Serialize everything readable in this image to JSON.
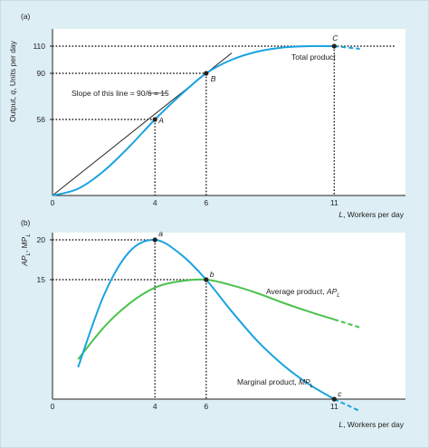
{
  "chart_data": [
    {
      "type": "line",
      "panel_label": "(a)",
      "xlabel_italic": "L",
      "xlabel_text": ", Workers per day",
      "ylabel_text": "Output, ",
      "ylabel_italic": "q",
      "ylabel_rest": ", Units per day",
      "x_ticks": [
        "0",
        "4",
        "6",
        "11"
      ],
      "y_ticks": [
        "56",
        "90",
        "110"
      ],
      "xlim": [
        0,
        13
      ],
      "ylim": [
        0,
        115
      ],
      "series": [
        {
          "name": "Total product",
          "color": "#1aa3e0",
          "x": [
            0,
            1,
            2,
            3,
            4,
            5,
            6,
            7,
            8,
            9,
            10,
            11,
            12
          ],
          "y": [
            0,
            5,
            18,
            36,
            56,
            74,
            90,
            100,
            106,
            109,
            110,
            110,
            108
          ]
        }
      ],
      "tangent_line": {
        "label": "Slope of this line = 90/6 = 15",
        "x": [
          0,
          7
        ],
        "y": [
          0,
          105
        ]
      },
      "points": [
        {
          "name": "A",
          "x": 4,
          "y": 56
        },
        {
          "name": "B",
          "x": 6,
          "y": 90
        },
        {
          "name": "C",
          "x": 11,
          "y": 110
        }
      ],
      "grid": false
    },
    {
      "type": "line",
      "panel_label": "(b)",
      "xlabel_italic": "L",
      "xlabel_text": ", Workers per day",
      "ylabel_parts": [
        "AP",
        "L",
        ", MP",
        "L"
      ],
      "x_ticks": [
        "0",
        "4",
        "6",
        "11"
      ],
      "y_ticks": [
        "15",
        "20"
      ],
      "xlim": [
        0,
        13
      ],
      "ylim": [
        0,
        21.5
      ],
      "series": [
        {
          "name": "Average product, AP_L",
          "label_main": "Average product, ",
          "label_italic": "AP",
          "label_sub": "L",
          "color": "#4cc24e",
          "x": [
            1,
            2,
            3,
            4,
            5,
            6,
            7,
            8,
            9,
            10,
            11,
            12
          ],
          "y": [
            5,
            9,
            12,
            14,
            14.8,
            15,
            14.3,
            13.3,
            12.1,
            11,
            10,
            9
          ]
        },
        {
          "name": "Marginal product, MP_L",
          "label_main": "Marginal product, ",
          "label_italic": "MP",
          "label_sub": "L",
          "color": "#1aa3e0",
          "x": [
            1,
            2,
            3,
            4,
            5,
            6,
            7,
            8,
            9,
            10,
            11,
            12
          ],
          "y": [
            4,
            13,
            18.5,
            20,
            18.2,
            15,
            11,
            7.3,
            4.3,
            1.9,
            0,
            -1.5
          ]
        }
      ],
      "points": [
        {
          "name": "a",
          "x": 4,
          "y": 20
        },
        {
          "name": "b",
          "x": 6,
          "y": 15
        },
        {
          "name": "c",
          "x": 11,
          "y": 0
        }
      ],
      "grid": false
    }
  ]
}
